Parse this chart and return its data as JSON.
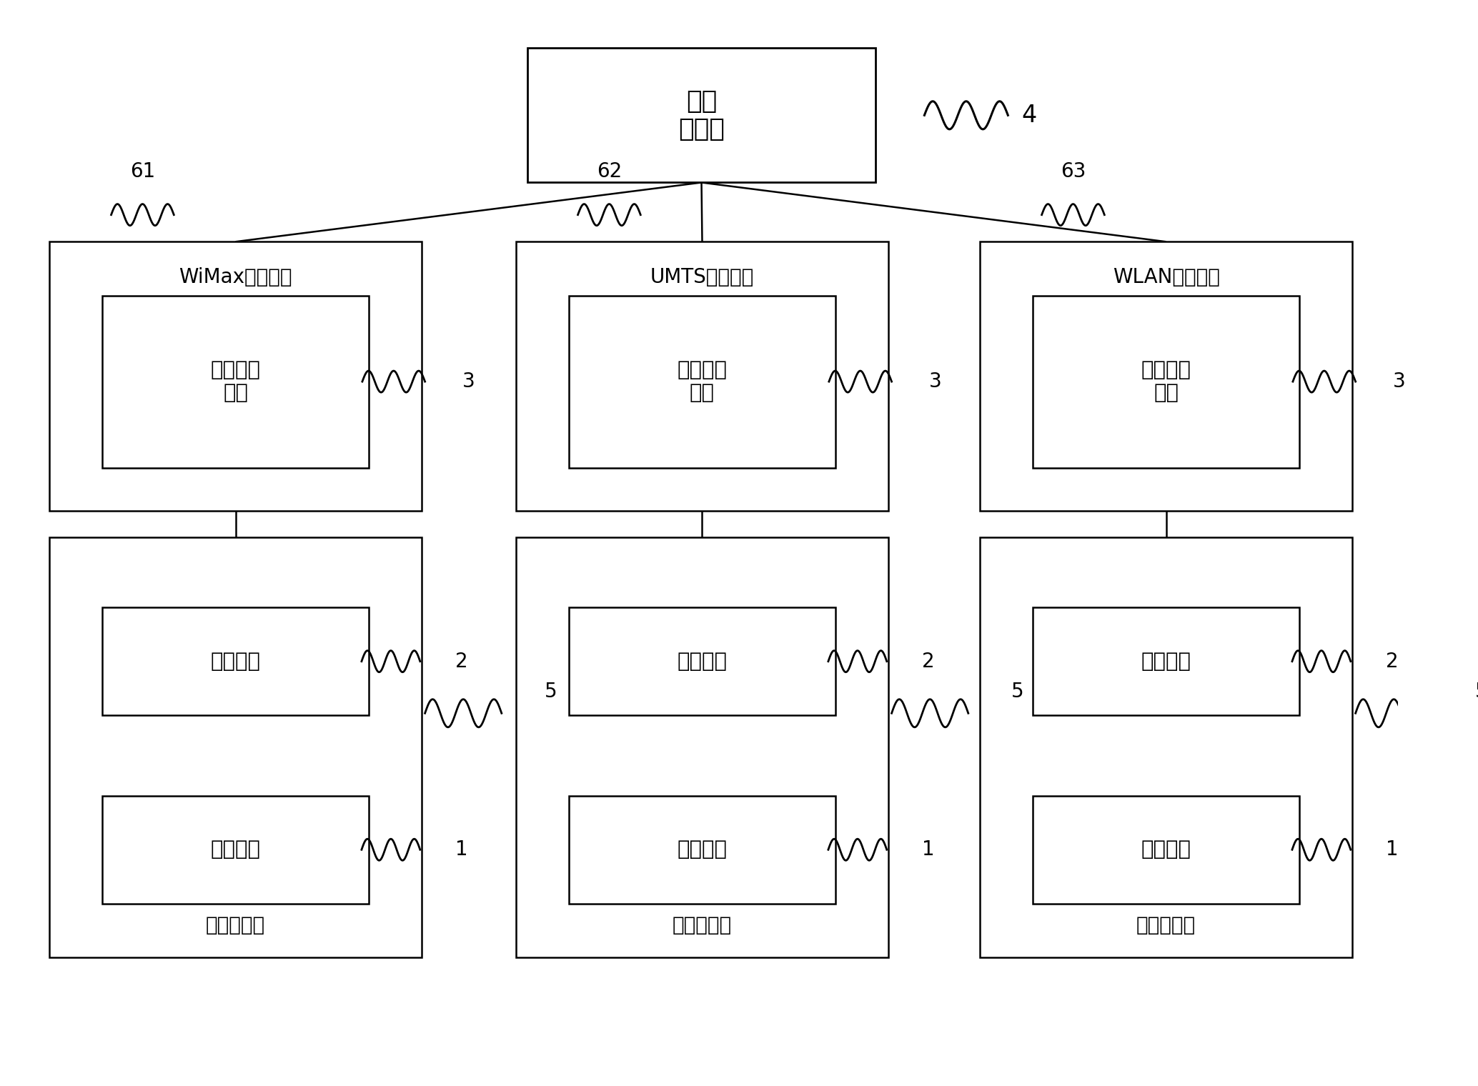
{
  "bg_color": "#ffffff",
  "line_color": "#000000",
  "font_color": "#000000",
  "title_server": "决策\n服务器",
  "label_4": "4",
  "access_labels": [
    "WiMax接入设备",
    "UMTS接入设备",
    "WLAN接入设备"
  ],
  "access_ids": [
    "61",
    "62",
    "63"
  ],
  "module_info": "信息收发\n模块",
  "module_exec": "执行模块",
  "module_detect": "探测模块",
  "terminal_label": "终端侧设备",
  "label_3": "3",
  "label_2": "2",
  "label_1": "1",
  "label_5": "5",
  "figsize": [
    20.68,
    15.2
  ],
  "dpi": 100
}
